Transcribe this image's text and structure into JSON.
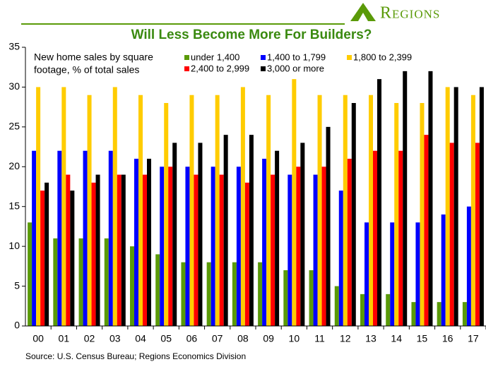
{
  "chart_data": {
    "type": "bar",
    "brand": "Regions",
    "title": "Will Less Become More For Builders?",
    "subtitle": [
      "New home sales by square",
      "footage, % of total sales"
    ],
    "source": "Source: U.S. Census Bureau; Regions Economics Division",
    "categories": [
      "00",
      "01",
      "02",
      "03",
      "04",
      "05",
      "06",
      "07",
      "08",
      "09",
      "10",
      "11",
      "12",
      "13",
      "14",
      "15",
      "16",
      "17"
    ],
    "series": [
      {
        "name": "under 1,400",
        "color": "#5a9a08",
        "values": [
          13,
          11,
          11,
          11,
          10,
          9,
          8,
          8,
          8,
          8,
          7,
          7,
          5,
          4,
          4,
          3,
          3,
          3
        ]
      },
      {
        "name": "1,400 to 1,799",
        "color": "#0000ff",
        "values": [
          22,
          22,
          22,
          22,
          21,
          20,
          20,
          20,
          20,
          21,
          19,
          19,
          17,
          13,
          13,
          13,
          14,
          15
        ]
      },
      {
        "name": "1,800 to 2,399",
        "color": "#ffcc00",
        "values": [
          30,
          30,
          29,
          30,
          29,
          28,
          29,
          29,
          30,
          29,
          31,
          29,
          29,
          29,
          28,
          28,
          30,
          29
        ]
      },
      {
        "name": "2,400 to 2,999",
        "color": "#ff0000",
        "values": [
          17,
          19,
          18,
          19,
          19,
          20,
          19,
          19,
          18,
          19,
          20,
          20,
          21,
          22,
          22,
          24,
          23,
          23
        ]
      },
      {
        "name": "3,000 or more",
        "color": "#000000",
        "values": [
          18,
          17,
          19,
          19,
          21,
          23,
          23,
          24,
          24,
          22,
          23,
          25,
          28,
          31,
          32,
          32,
          30,
          30
        ]
      }
    ],
    "ylim": [
      0,
      35
    ],
    "yticks": [
      0,
      5,
      10,
      15,
      20,
      25,
      30,
      35
    ],
    "grid": false
  }
}
